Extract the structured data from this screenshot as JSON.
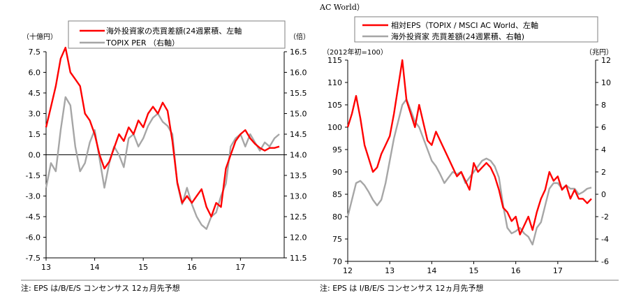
{
  "top_caption": "AC World）",
  "colors": {
    "red": "#ff0000",
    "gray": "#a6a6a6",
    "axis": "#000000",
    "frame": "#7f7f7f"
  },
  "chart_data": [
    {
      "type": "line",
      "left_unit": "（十億円）",
      "right_unit": "（倍）",
      "x_ticks": [
        "13",
        "14",
        "15",
        "16",
        "17"
      ],
      "xlim": [
        2013.0,
        2017.9
      ],
      "ylim_left": [
        -7.5,
        7.5
      ],
      "ylim_right": [
        11.5,
        16.5
      ],
      "y_ticks_left": [
        "7.5",
        "6.0",
        "4.5",
        "3.0",
        "1.5",
        "0.0",
        "-1.5",
        "-3.0",
        "-4.5",
        "-6.0",
        "-7.5"
      ],
      "y_ticks_right": [
        "16.5",
        "16.0",
        "15.5",
        "15.0",
        "14.5",
        "14.0",
        "13.5",
        "13.0",
        "12.5",
        "12.0",
        "11.5"
      ],
      "series": [
        {
          "name": "海外投資家の売買差額(24週累積、左軸",
          "axis": "left",
          "color": "#ff0000",
          "x": [
            2013.0,
            2013.1,
            2013.2,
            2013.3,
            2013.4,
            2013.5,
            2013.6,
            2013.7,
            2013.8,
            2013.9,
            2014.0,
            2014.1,
            2014.2,
            2014.3,
            2014.4,
            2014.5,
            2014.6,
            2014.7,
            2014.8,
            2014.9,
            2015.0,
            2015.1,
            2015.2,
            2015.3,
            2015.4,
            2015.5,
            2015.6,
            2015.7,
            2015.8,
            2015.9,
            2016.0,
            2016.1,
            2016.2,
            2016.3,
            2016.4,
            2016.5,
            2016.6,
            2016.7,
            2016.8,
            2016.9,
            2017.0,
            2017.1,
            2017.2,
            2017.3,
            2017.4,
            2017.5,
            2017.6,
            2017.7,
            2017.8
          ],
          "y": [
            2.0,
            3.5,
            5.0,
            7.0,
            7.8,
            6.0,
            5.5,
            5.0,
            3.0,
            2.5,
            1.5,
            0.0,
            -1.0,
            -0.5,
            0.5,
            1.5,
            1.0,
            2.0,
            1.5,
            2.5,
            2.0,
            3.0,
            3.5,
            3.0,
            3.8,
            3.2,
            1.0,
            -2.0,
            -3.5,
            -3.0,
            -3.5,
            -3.0,
            -2.5,
            -3.8,
            -4.5,
            -3.5,
            -3.8,
            -1.0,
            0.0,
            1.0,
            1.5,
            1.8,
            1.2,
            0.8,
            0.5,
            0.3,
            0.5,
            0.5,
            0.6
          ]
        },
        {
          "name": "TOPIX PER （右軸）",
          "axis": "right",
          "color": "#a6a6a6",
          "x": [
            2013.0,
            2013.1,
            2013.2,
            2013.3,
            2013.4,
            2013.5,
            2013.6,
            2013.7,
            2013.8,
            2013.9,
            2014.0,
            2014.1,
            2014.2,
            2014.3,
            2014.4,
            2014.5,
            2014.6,
            2014.7,
            2014.8,
            2014.9,
            2015.0,
            2015.1,
            2015.2,
            2015.3,
            2015.4,
            2015.5,
            2015.6,
            2015.7,
            2015.8,
            2015.9,
            2016.0,
            2016.1,
            2016.2,
            2016.3,
            2016.4,
            2016.5,
            2016.6,
            2016.7,
            2016.8,
            2016.9,
            2017.0,
            2017.1,
            2017.2,
            2017.3,
            2017.4,
            2017.5,
            2017.6,
            2017.7,
            2017.8
          ],
          "y": [
            13.2,
            13.8,
            13.6,
            14.6,
            15.4,
            15.2,
            14.2,
            13.6,
            13.8,
            14.3,
            14.6,
            13.9,
            13.2,
            13.8,
            14.2,
            14.0,
            13.7,
            14.4,
            14.5,
            14.2,
            14.4,
            14.7,
            14.9,
            15.0,
            14.8,
            14.7,
            14.5,
            13.3,
            12.8,
            13.2,
            12.8,
            12.5,
            12.3,
            12.2,
            12.5,
            12.6,
            13.0,
            13.3,
            14.2,
            14.4,
            14.5,
            14.2,
            14.5,
            14.3,
            14.1,
            14.3,
            14.2,
            14.4,
            14.5
          ]
        }
      ]
    },
    {
      "type": "line",
      "left_unit": "（2012年初=100）",
      "right_unit": "（兆円）",
      "x_ticks": [
        "12",
        "13",
        "14",
        "15",
        "16",
        "17"
      ],
      "xlim": [
        2012.0,
        2017.9
      ],
      "ylim_left": [
        70,
        115
      ],
      "ylim_right": [
        -6,
        12
      ],
      "y_ticks_left": [
        "115",
        "110",
        "105",
        "100",
        "95",
        "90",
        "85",
        "80",
        "75",
        "70"
      ],
      "y_ticks_right": [
        "12",
        "10",
        "8",
        "6",
        "4",
        "2",
        "0",
        "-2",
        "-4",
        "-6"
      ],
      "series": [
        {
          "name": "相対EPS（TOPIX / MSCI AC World、左軸",
          "axis": "left",
          "color": "#ff0000",
          "x": [
            2012.0,
            2012.1,
            2012.2,
            2012.3,
            2012.4,
            2012.5,
            2012.6,
            2012.7,
            2012.8,
            2012.9,
            2013.0,
            2013.1,
            2013.2,
            2013.3,
            2013.4,
            2013.5,
            2013.6,
            2013.7,
            2013.8,
            2013.9,
            2014.0,
            2014.1,
            2014.2,
            2014.3,
            2014.4,
            2014.5,
            2014.6,
            2014.7,
            2014.8,
            2014.9,
            2015.0,
            2015.1,
            2015.2,
            2015.3,
            2015.4,
            2015.5,
            2015.6,
            2015.7,
            2015.8,
            2015.9,
            2016.0,
            2016.1,
            2016.2,
            2016.3,
            2016.4,
            2016.5,
            2016.6,
            2016.7,
            2016.8,
            2016.9,
            2017.0,
            2017.1,
            2017.2,
            2017.3,
            2017.4,
            2017.5,
            2017.6,
            2017.7,
            2017.8
          ],
          "y": [
            100,
            103,
            107,
            102,
            96,
            93,
            90,
            91,
            94,
            96,
            98,
            103,
            109,
            115,
            106,
            103,
            100,
            105,
            101,
            97,
            96,
            99,
            97,
            95,
            93,
            91,
            89,
            90,
            88,
            86,
            92,
            90,
            91,
            92,
            91,
            89,
            86,
            82,
            81,
            79,
            80,
            76,
            78,
            80,
            77,
            81,
            84,
            86,
            90,
            88,
            89,
            86,
            87,
            84,
            86,
            84,
            84,
            83,
            84
          ]
        },
        {
          "name": "海外投資家 売買差額(24週累積、右軸)",
          "axis": "right",
          "color": "#a6a6a6",
          "x": [
            2012.0,
            2012.1,
            2012.2,
            2012.3,
            2012.4,
            2012.5,
            2012.6,
            2012.7,
            2012.8,
            2012.9,
            2013.0,
            2013.1,
            2013.2,
            2013.3,
            2013.4,
            2013.5,
            2013.6,
            2013.7,
            2013.8,
            2013.9,
            2014.0,
            2014.1,
            2014.2,
            2014.3,
            2014.4,
            2014.5,
            2014.6,
            2014.7,
            2014.8,
            2014.9,
            2015.0,
            2015.1,
            2015.2,
            2015.3,
            2015.4,
            2015.5,
            2015.6,
            2015.7,
            2015.8,
            2015.9,
            2016.0,
            2016.1,
            2016.2,
            2016.3,
            2016.4,
            2016.5,
            2016.6,
            2016.7,
            2016.8,
            2016.9,
            2017.0,
            2017.1,
            2017.2,
            2017.3,
            2017.4,
            2017.5,
            2017.6,
            2017.7,
            2017.8
          ],
          "y": [
            -2.0,
            -0.5,
            1.0,
            1.2,
            0.8,
            0.2,
            -0.5,
            -1.0,
            -0.5,
            1.0,
            3.0,
            5.0,
            6.5,
            8.0,
            8.5,
            7.5,
            6.5,
            6.0,
            5.0,
            4.0,
            3.0,
            2.5,
            1.8,
            1.0,
            1.5,
            2.0,
            1.8,
            2.0,
            1.0,
            1.5,
            2.0,
            2.5,
            3.0,
            3.2,
            3.0,
            2.5,
            1.5,
            -1.0,
            -3.0,
            -3.5,
            -3.3,
            -3.0,
            -3.5,
            -3.8,
            -4.5,
            -3.0,
            -2.5,
            -1.0,
            0.5,
            1.0,
            1.0,
            0.5,
            0.8,
            0.5,
            0.5,
            0.0,
            0.2,
            0.5,
            0.6
          ]
        }
      ]
    }
  ],
  "notes": [
    "注: EPS は/B/E/S コンセンサス 12ヵ月先予想",
    "注: EPS は I/B/E/S コンセンサス 12ヵ月先予想"
  ]
}
